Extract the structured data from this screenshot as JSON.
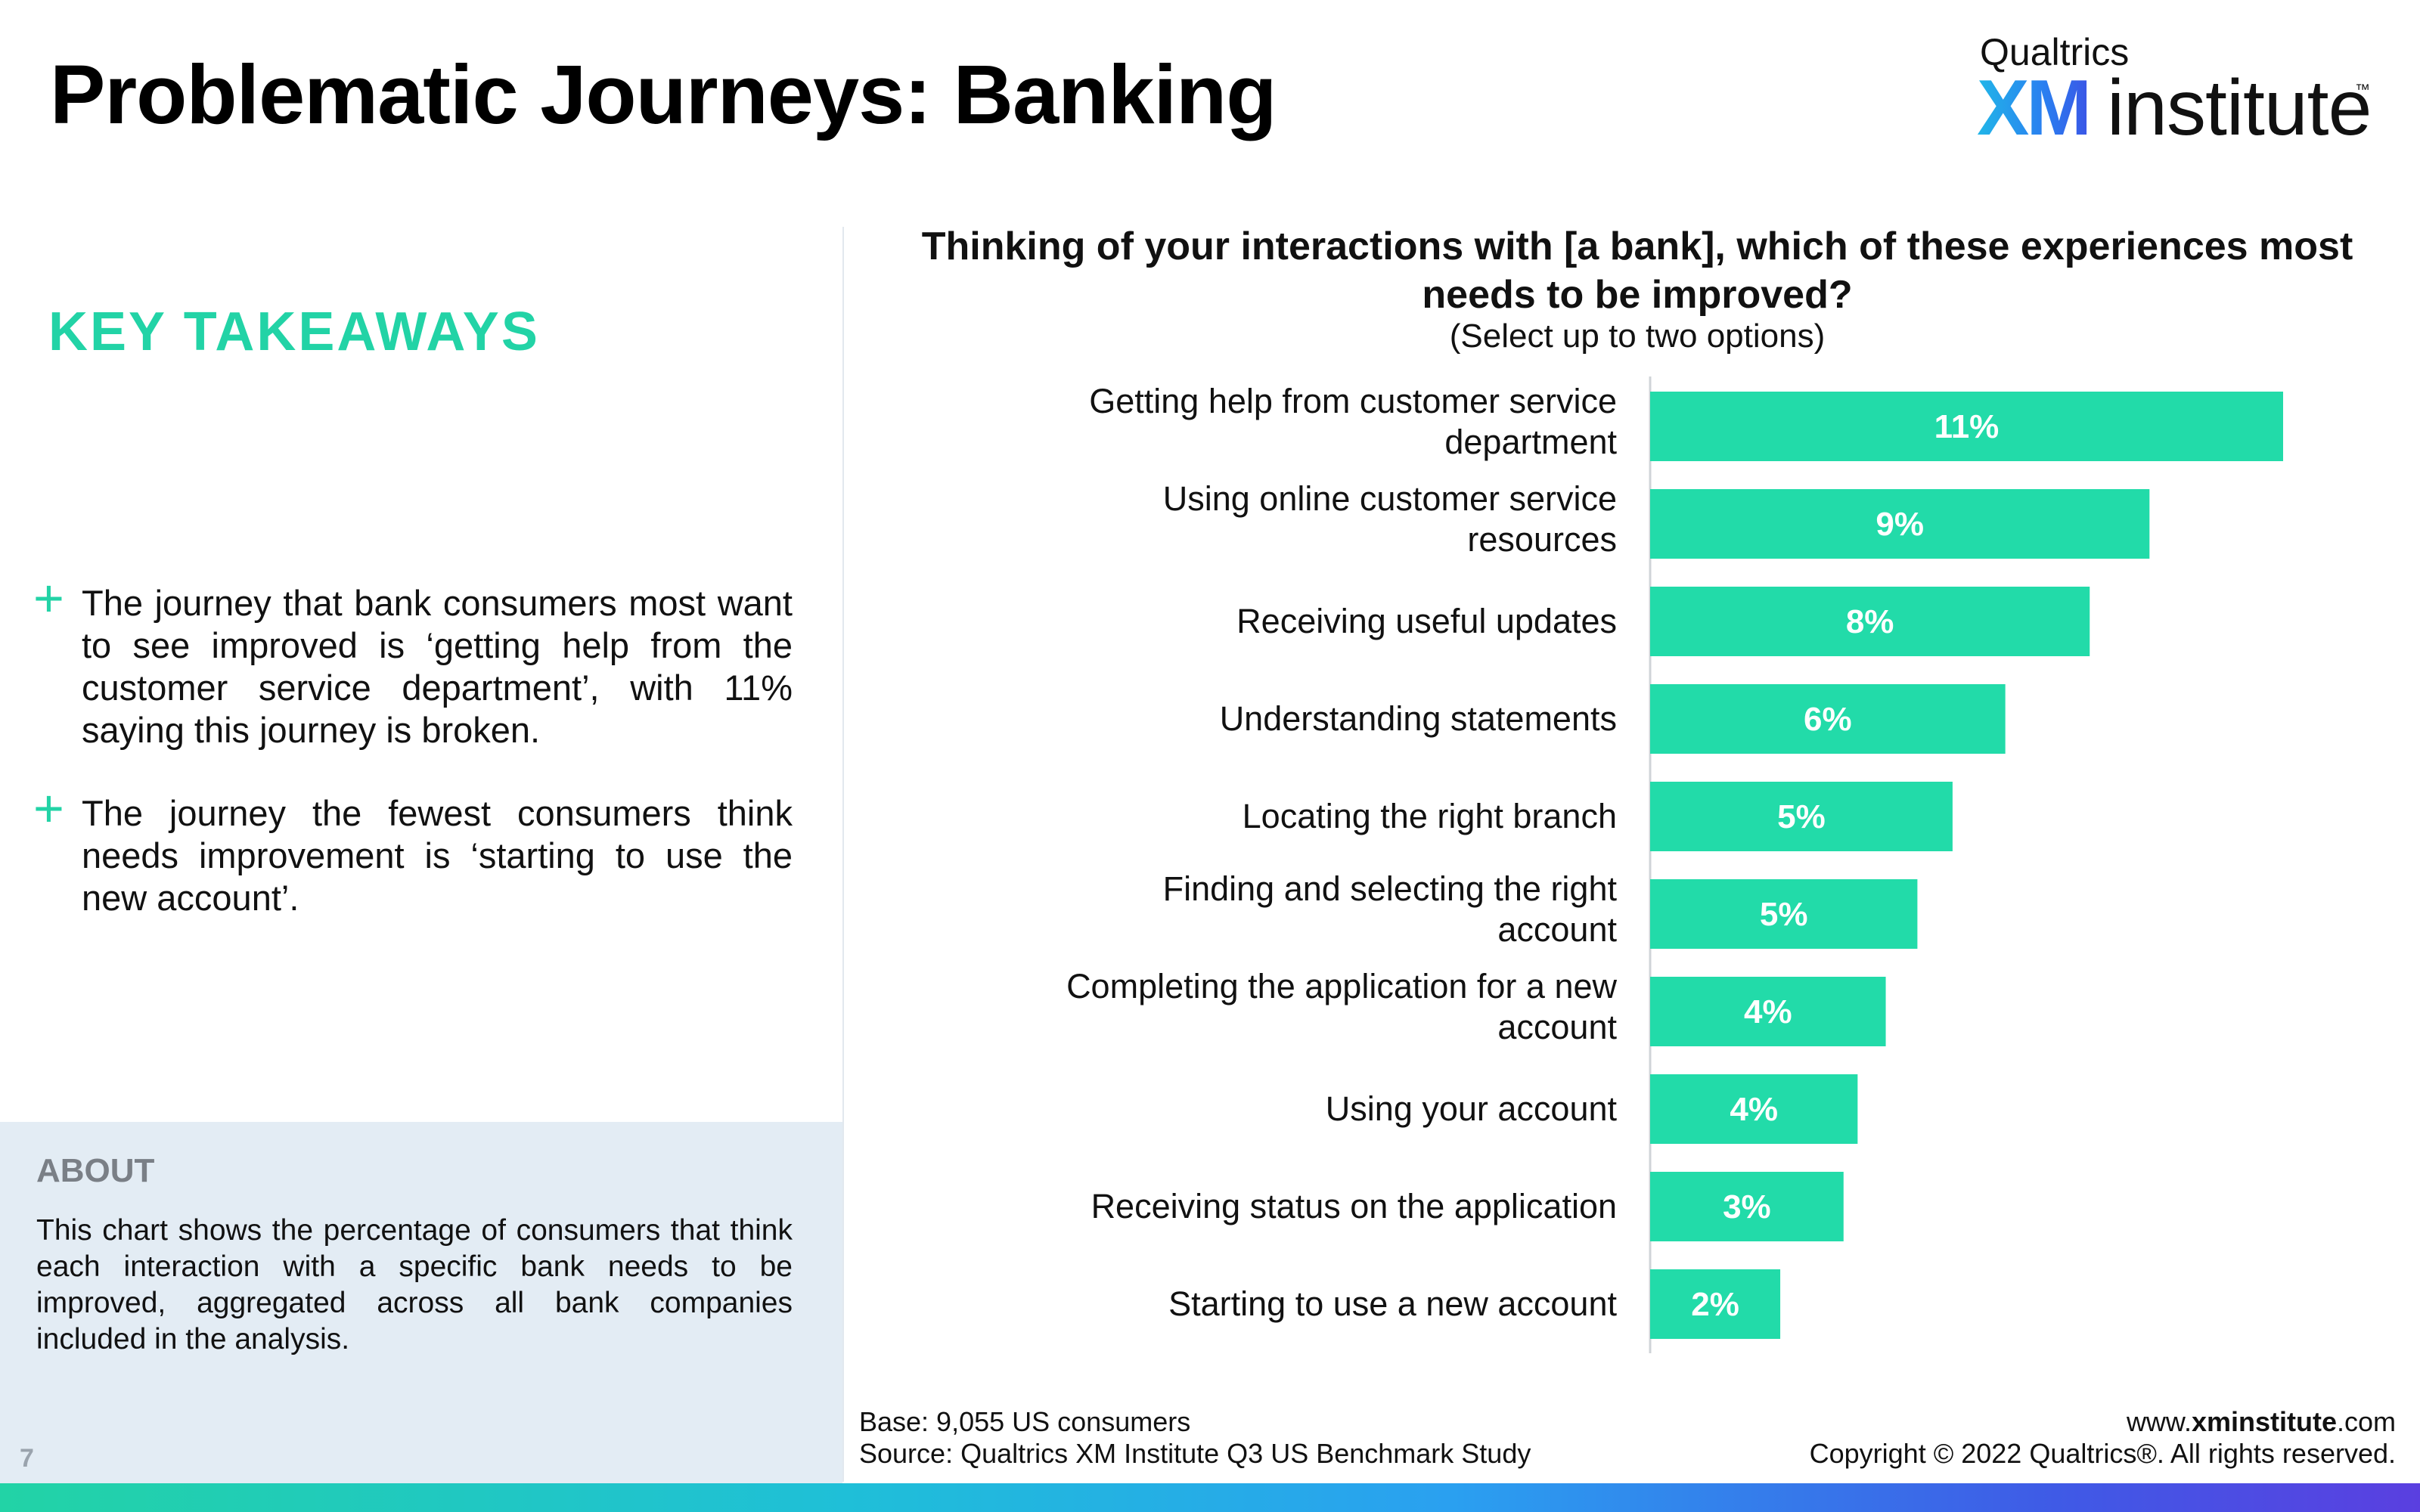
{
  "page": {
    "title": "Problematic Journeys: Banking",
    "page_number": "7"
  },
  "logo": {
    "top": "Qualtrics",
    "xm": "XM",
    "word": "institute",
    "tm": "™"
  },
  "takeaways": {
    "title": "KEY TAKEAWAYS",
    "items": [
      "The journey that bank consumers most want to see improved is ‘getting help from the customer service department’, with 11% saying this journey is broken.",
      "The journey the fewest consumers think needs improvement is ‘starting to use the new account’."
    ]
  },
  "about": {
    "title": "ABOUT",
    "text": "This chart shows the percentage of consumers that think each interaction with a specific bank needs to be improved, aggregated across all bank companies included in the analysis."
  },
  "footer": {
    "base": "Base: 9,055 US consumers",
    "source": "Source: Qualtrics XM Institute Q3 US Benchmark Study",
    "url_prefix": "www.",
    "url_bold": "xminstitute",
    "url_suffix": ".com",
    "copyright": "Copyright © 2022 Qualtrics®. All rights reserved."
  },
  "colors": {
    "accent": "#22d3a6",
    "bar": "#22dba9",
    "about_panel": "#e3ecf4"
  },
  "chart_data": {
    "type": "bar",
    "orientation": "horizontal",
    "title": "Thinking of your interactions with [a bank], which of these experiences most needs to be improved?",
    "subtitle": "(Select up to two options)",
    "categories": [
      "Getting help from customer service department",
      "Using online customer service resources",
      "Receiving useful updates",
      "Understanding statements",
      "Locating the right branch",
      "Finding and selecting the right account",
      "Completing the application for a new account",
      "Using your account",
      "Receiving status on the application",
      "Starting to use a new account"
    ],
    "values": [
      11,
      9,
      8,
      6,
      5,
      5,
      4,
      4,
      3,
      2
    ],
    "value_labels": [
      "11%",
      "9%",
      "8%",
      "6%",
      "5%",
      "5%",
      "4%",
      "4%",
      "3%",
      "2%"
    ],
    "bar_fill_fraction": [
      0.9,
      0.71,
      0.625,
      0.505,
      0.43,
      0.38,
      0.335,
      0.295,
      0.275,
      0.185
    ],
    "unit": "%",
    "grid": false,
    "legend": "none"
  }
}
